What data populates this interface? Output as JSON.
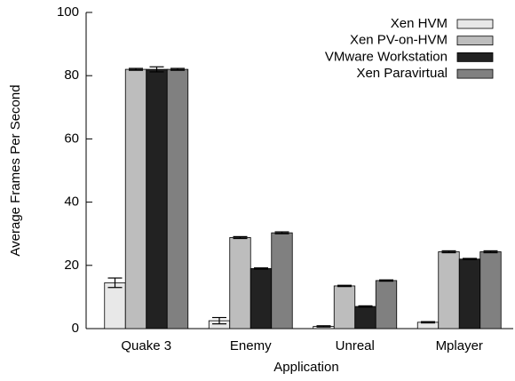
{
  "chart_data": {
    "type": "bar",
    "xlabel": "Application",
    "ylabel": "Average Frames Per Second",
    "categories": [
      "Quake 3",
      "Enemy",
      "Unreal",
      "Mplayer"
    ],
    "series": [
      {
        "name": "Xen HVM",
        "color": "#e8e8e8",
        "values": [
          14.5,
          2.5,
          0.7,
          2
        ],
        "errors": [
          1.5,
          1,
          0.2,
          0.2
        ]
      },
      {
        "name": "Xen PV-on-HVM",
        "color": "#bdbdbd",
        "values": [
          82,
          28.8,
          13.5,
          24.3
        ],
        "errors": [
          0.3,
          0.3,
          0.2,
          0.3
        ]
      },
      {
        "name": "VMware Workstation",
        "color": "#222222",
        "values": [
          82,
          19,
          7,
          22
        ],
        "errors": [
          0.8,
          0.2,
          0.2,
          0.2
        ]
      },
      {
        "name": "Xen Paravirtual",
        "color": "#808080",
        "values": [
          82,
          30.3,
          15.2,
          24.3
        ],
        "errors": [
          0.3,
          0.3,
          0.2,
          0.3
        ]
      }
    ],
    "ylim": [
      0,
      100
    ],
    "yticks": [
      0,
      20,
      40,
      60,
      80,
      100
    ],
    "legend": "upper right"
  }
}
